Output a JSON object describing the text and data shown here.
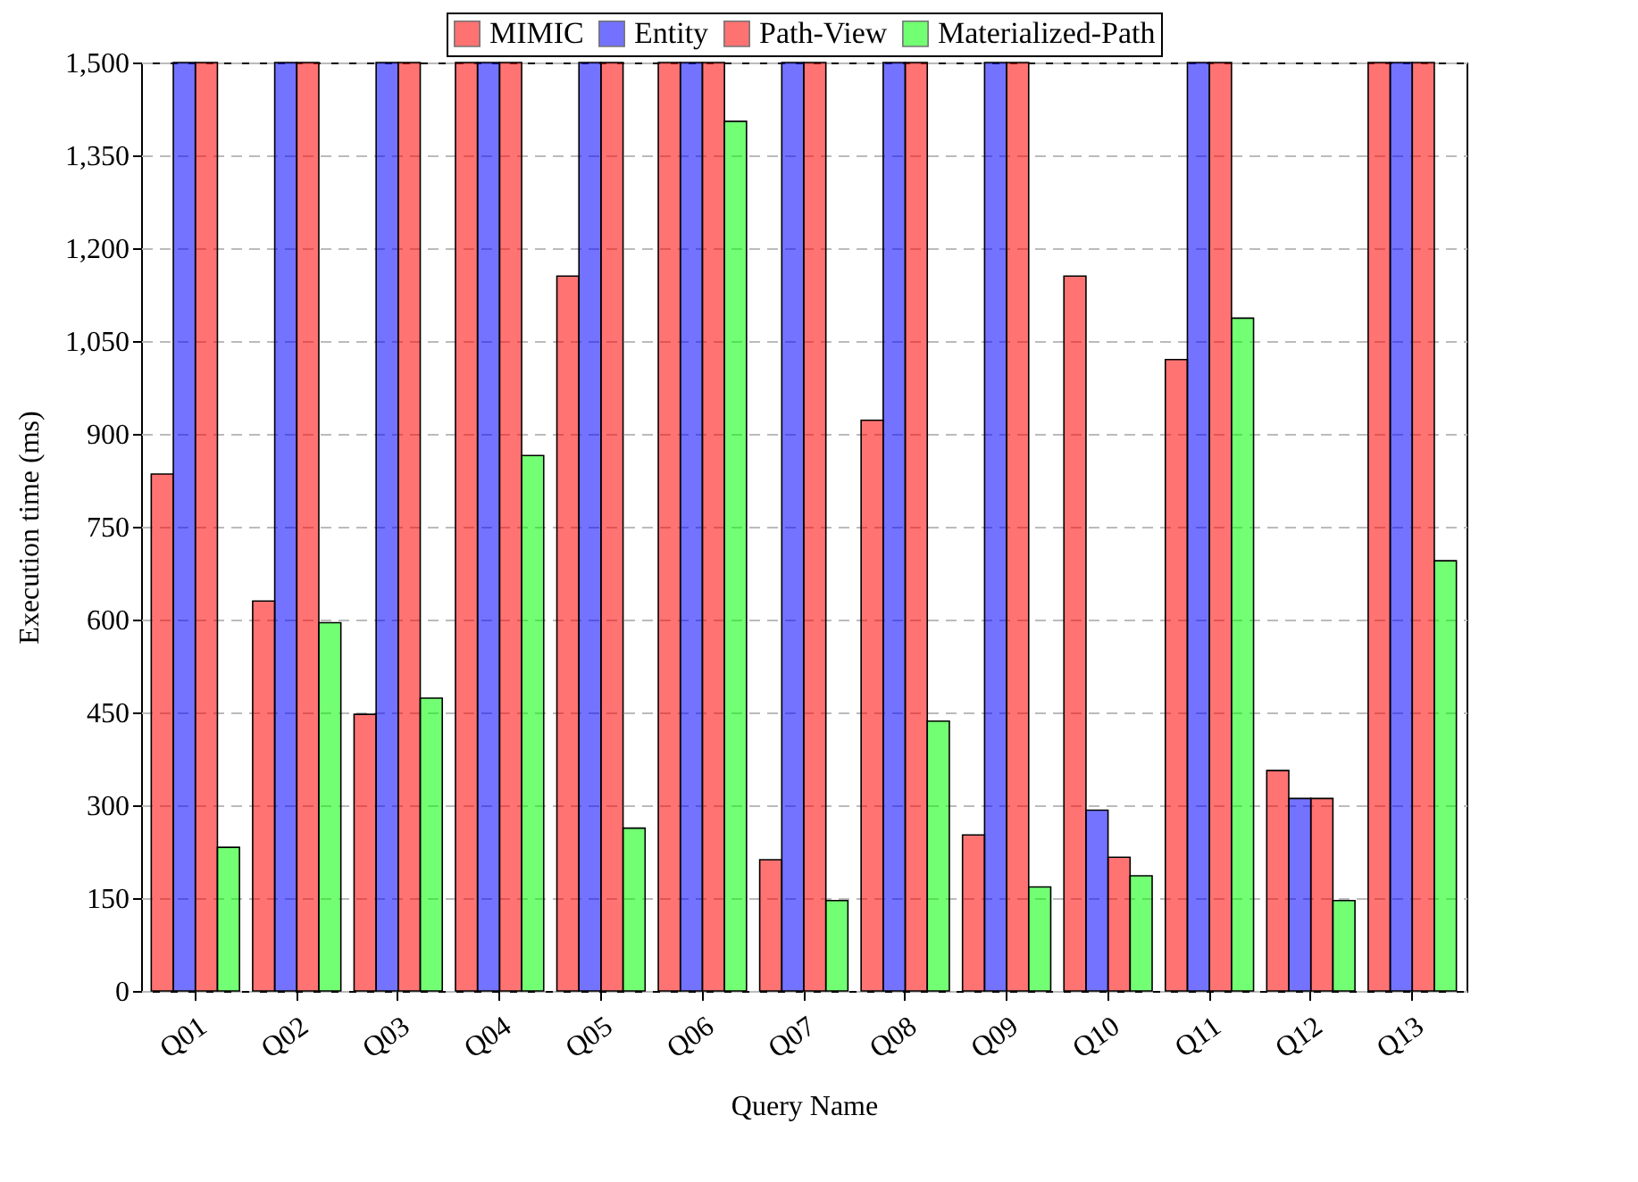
{
  "chart_data": {
    "type": "bar",
    "xlabel": "Query Name",
    "ylabel": "Execution time (ms)",
    "categories": [
      "Q01",
      "Q02",
      "Q03",
      "Q04",
      "Q05",
      "Q06",
      "Q07",
      "Q08",
      "Q09",
      "Q10",
      "Q11",
      "Q12",
      "Q13"
    ],
    "series": [
      {
        "name": "MIMIC",
        "color": "#ff0000",
        "values": [
          835,
          630,
          447,
          1500,
          1155,
          1500,
          212,
          922,
          252,
          1155,
          1020,
          356,
          1500
        ]
      },
      {
        "name": "Entity",
        "color": "#0000ff",
        "values": [
          1500,
          1500,
          1500,
          1500,
          1500,
          1500,
          1500,
          1500,
          1500,
          292,
          1500,
          311,
          1500
        ]
      },
      {
        "name": "Path-View",
        "color": "#ff0000",
        "values": [
          1500,
          1500,
          1500,
          1500,
          1500,
          1500,
          1500,
          1500,
          1500,
          216,
          1500,
          311,
          1500
        ]
      },
      {
        "name": "Materialized-Path",
        "color": "#00ff00",
        "values": [
          232,
          595,
          473,
          865,
          263,
          1405,
          146,
          436,
          168,
          186,
          1087,
          146,
          695
        ]
      }
    ],
    "ylim": [
      0,
      1500
    ],
    "yticks": [
      {
        "value": 0,
        "label": "0"
      },
      {
        "value": 150,
        "label": "150"
      },
      {
        "value": 300,
        "label": "300"
      },
      {
        "value": 450,
        "label": "450"
      },
      {
        "value": 600,
        "label": "600"
      },
      {
        "value": 750,
        "label": "750"
      },
      {
        "value": 900,
        "label": "900"
      },
      {
        "value": 1050,
        "label": "1,050"
      },
      {
        "value": 1200,
        "label": "1,200"
      },
      {
        "value": 1350,
        "label": "1,350"
      },
      {
        "value": 1500,
        "label": "1,500"
      }
    ],
    "grid": "y",
    "legend": "top"
  }
}
